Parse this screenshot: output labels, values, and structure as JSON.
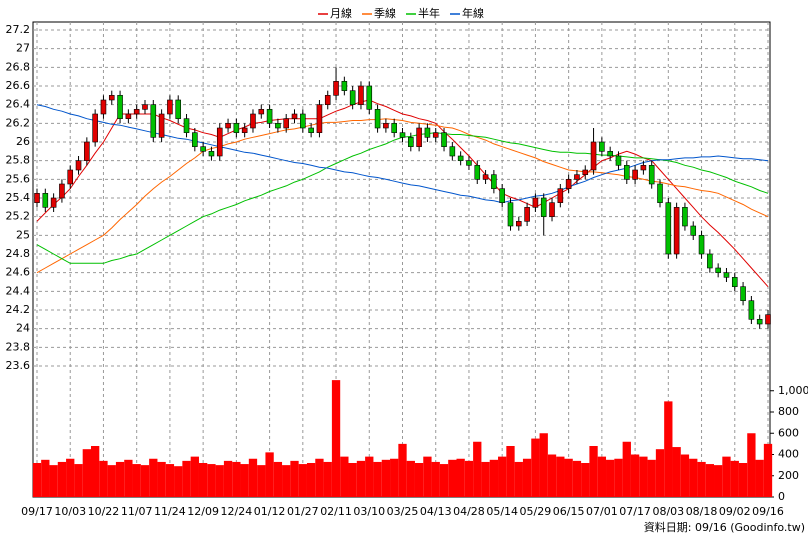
{
  "chart_data": {
    "type": "candlestick",
    "legend": [
      "月線",
      "季線",
      "半年",
      "年線"
    ],
    "footer": "資料日期: 09/16  (Goodinfo.tw)",
    "categories": [
      "09/17",
      null,
      null,
      null,
      "10/03",
      null,
      null,
      null,
      "10/22",
      null,
      null,
      null,
      "11/07",
      null,
      null,
      null,
      "11/24",
      null,
      null,
      null,
      "12/09",
      null,
      null,
      null,
      "12/24",
      null,
      null,
      null,
      "01/12",
      null,
      null,
      null,
      "01/27",
      null,
      null,
      null,
      "02/11",
      null,
      null,
      null,
      "03/10",
      null,
      null,
      null,
      "03/25",
      null,
      null,
      null,
      "04/13",
      null,
      null,
      null,
      "04/28",
      null,
      null,
      null,
      "05/14",
      null,
      null,
      null,
      "05/29",
      null,
      null,
      null,
      "06/15",
      null,
      null,
      null,
      "07/01",
      null,
      null,
      null,
      "07/17",
      null,
      null,
      null,
      "08/03",
      null,
      null,
      null,
      "08/18",
      null,
      null,
      null,
      "09/02",
      null,
      null,
      null,
      "09/16"
    ],
    "open": [
      25.35,
      25.45,
      25.3,
      25.4,
      25.55,
      25.7,
      25.8,
      26.0,
      26.3,
      26.45,
      26.5,
      26.25,
      26.3,
      26.35,
      26.4,
      26.05,
      26.3,
      26.45,
      26.25,
      26.1,
      25.95,
      25.9,
      25.85,
      26.15,
      26.2,
      26.1,
      26.15,
      26.3,
      26.35,
      26.2,
      26.15,
      26.25,
      26.3,
      26.15,
      26.1,
      26.4,
      26.5,
      26.65,
      26.55,
      26.4,
      26.6,
      26.35,
      26.15,
      26.2,
      26.1,
      26.05,
      25.95,
      26.15,
      26.05,
      26.1,
      25.95,
      25.85,
      25.8,
      25.75,
      25.6,
      25.65,
      25.5,
      25.35,
      25.1,
      25.15,
      25.3,
      25.4,
      25.2,
      25.35,
      25.5,
      25.6,
      25.65,
      25.7,
      26.0,
      25.9,
      25.85,
      25.75,
      25.6,
      25.7,
      25.75,
      25.55,
      25.35,
      24.8,
      25.3,
      25.1,
      25.0,
      24.8,
      24.65,
      24.6,
      24.55,
      24.45,
      24.3,
      24.1,
      24.05
    ],
    "high": [
      25.5,
      25.5,
      25.45,
      25.6,
      25.75,
      25.85,
      26.05,
      26.35,
      26.5,
      26.55,
      26.55,
      26.35,
      26.4,
      26.45,
      26.45,
      26.35,
      26.5,
      26.5,
      26.3,
      26.15,
      26.0,
      25.95,
      26.2,
      26.25,
      26.25,
      26.2,
      26.35,
      26.4,
      26.4,
      26.25,
      26.3,
      26.35,
      26.35,
      26.2,
      26.45,
      26.55,
      26.8,
      26.7,
      26.6,
      26.65,
      26.65,
      26.4,
      26.25,
      26.25,
      26.15,
      26.1,
      26.2,
      26.2,
      26.15,
      26.15,
      26.0,
      25.9,
      25.85,
      25.8,
      25.7,
      25.7,
      25.55,
      25.4,
      25.2,
      25.35,
      25.45,
      25.45,
      25.4,
      25.55,
      25.65,
      25.7,
      25.75,
      26.15,
      26.05,
      25.95,
      25.9,
      25.8,
      25.75,
      25.8,
      25.8,
      25.6,
      25.4,
      25.35,
      25.35,
      25.15,
      25.05,
      24.85,
      24.7,
      24.65,
      24.6,
      24.5,
      24.35,
      24.15,
      24.2
    ],
    "low": [
      25.3,
      25.25,
      25.25,
      25.35,
      25.5,
      25.65,
      25.75,
      25.95,
      26.25,
      26.4,
      26.2,
      26.2,
      26.25,
      26.3,
      26.0,
      26.0,
      26.25,
      26.2,
      26.05,
      25.9,
      25.85,
      25.8,
      25.8,
      26.1,
      26.05,
      26.05,
      26.1,
      26.25,
      26.15,
      26.1,
      26.1,
      26.2,
      26.1,
      26.05,
      26.05,
      26.35,
      26.45,
      26.5,
      26.35,
      26.35,
      26.3,
      26.1,
      26.1,
      26.05,
      26.0,
      25.9,
      25.9,
      26.0,
      26.0,
      25.9,
      25.8,
      25.75,
      25.7,
      25.55,
      25.55,
      25.45,
      25.3,
      25.05,
      25.05,
      25.1,
      25.25,
      25.0,
      25.15,
      25.3,
      25.45,
      25.55,
      25.6,
      25.65,
      25.85,
      25.8,
      25.7,
      25.55,
      25.55,
      25.65,
      25.5,
      25.3,
      24.75,
      24.75,
      25.05,
      24.95,
      24.75,
      24.6,
      24.55,
      24.5,
      24.4,
      24.25,
      24.05,
      24.0,
      24.0
    ],
    "close": [
      25.45,
      25.3,
      25.4,
      25.55,
      25.7,
      25.8,
      26.0,
      26.3,
      26.45,
      26.5,
      26.25,
      26.3,
      26.35,
      26.4,
      26.05,
      26.3,
      26.45,
      26.25,
      26.1,
      25.95,
      25.9,
      25.85,
      26.15,
      26.2,
      26.1,
      26.15,
      26.3,
      26.35,
      26.2,
      26.15,
      26.25,
      26.3,
      26.15,
      26.1,
      26.4,
      26.5,
      26.65,
      26.55,
      26.4,
      26.6,
      26.35,
      26.15,
      26.2,
      26.1,
      26.05,
      25.95,
      26.15,
      26.05,
      26.1,
      25.95,
      25.85,
      25.8,
      25.75,
      25.6,
      25.65,
      25.5,
      25.35,
      25.1,
      25.15,
      25.3,
      25.4,
      25.2,
      25.35,
      25.5,
      25.6,
      25.65,
      25.7,
      26.0,
      25.9,
      25.85,
      25.75,
      25.6,
      25.7,
      25.75,
      25.55,
      25.35,
      24.8,
      25.3,
      25.1,
      25.0,
      24.8,
      24.65,
      24.6,
      24.55,
      24.45,
      24.3,
      24.1,
      24.05,
      24.15
    ],
    "up_color": "#e00000",
    "down_color": "#00c000",
    "ylim": [
      23.6,
      27.2
    ],
    "yticks": [
      23.6,
      23.8,
      24,
      24.2,
      24.4,
      24.6,
      24.8,
      25,
      25.2,
      25.4,
      25.6,
      25.8,
      26,
      26.2,
      26.4,
      26.6,
      26.8,
      27,
      27.2
    ],
    "grid": true,
    "lines": [
      {
        "name": "月線",
        "color": "#e00000",
        "values": [
          25.15,
          25.24,
          25.33,
          25.41,
          25.5,
          25.63,
          25.75,
          25.88,
          26.0,
          26.15,
          26.3,
          26.3,
          26.3,
          26.3,
          26.3,
          26.26,
          26.23,
          26.19,
          26.15,
          26.13,
          26.1,
          26.08,
          26.05,
          26.09,
          26.13,
          26.16,
          26.2,
          26.21,
          26.23,
          26.24,
          26.25,
          26.25,
          26.25,
          26.25,
          26.25,
          26.29,
          26.33,
          26.36,
          26.4,
          26.43,
          26.45,
          26.41,
          26.38,
          26.34,
          26.3,
          26.28,
          26.25,
          26.23,
          26.2,
          26.11,
          26.03,
          25.94,
          25.85,
          25.75,
          25.65,
          25.55,
          25.45,
          25.41,
          25.38,
          25.34,
          25.3,
          25.35,
          25.4,
          25.45,
          25.5,
          25.58,
          25.65,
          25.73,
          25.8,
          25.83,
          25.87,
          25.9,
          25.87,
          25.83,
          25.8,
          25.7,
          25.6,
          25.5,
          25.4,
          25.3,
          25.2,
          25.11,
          25.03,
          24.94,
          24.85,
          24.75,
          24.65,
          24.55,
          24.45
        ]
      },
      {
        "name": "季線",
        "color": "#ff6600",
        "values": [
          24.6,
          24.65,
          24.7,
          24.75,
          24.8,
          24.85,
          24.9,
          24.95,
          25.0,
          25.08,
          25.17,
          25.25,
          25.33,
          25.42,
          25.5,
          25.57,
          25.63,
          25.7,
          25.77,
          25.83,
          25.9,
          25.93,
          25.95,
          25.98,
          26.0,
          26.03,
          26.05,
          26.07,
          26.09,
          26.11,
          26.13,
          26.14,
          26.16,
          26.18,
          26.2,
          26.21,
          26.21,
          26.22,
          26.23,
          26.23,
          26.24,
          26.24,
          26.25,
          26.24,
          26.23,
          26.21,
          26.2,
          26.19,
          26.18,
          26.16,
          26.15,
          26.12,
          26.08,
          26.05,
          26.02,
          25.98,
          25.95,
          25.92,
          25.89,
          25.86,
          25.83,
          25.79,
          25.76,
          25.73,
          25.7,
          25.69,
          25.68,
          25.68,
          25.67,
          25.66,
          25.65,
          25.63,
          25.62,
          25.6,
          25.58,
          25.57,
          25.55,
          25.53,
          25.52,
          25.5,
          25.48,
          25.47,
          25.45,
          25.41,
          25.37,
          25.33,
          25.28,
          25.24,
          25.2
        ]
      },
      {
        "name": "半年",
        "color": "#00c000",
        "values": [
          24.9,
          24.85,
          24.8,
          24.75,
          24.7,
          24.7,
          24.7,
          24.7,
          24.7,
          24.73,
          24.75,
          24.78,
          24.8,
          24.85,
          24.9,
          24.95,
          25.0,
          25.05,
          25.1,
          25.15,
          25.2,
          25.23,
          25.27,
          25.3,
          25.33,
          25.37,
          25.4,
          25.43,
          25.47,
          25.5,
          25.53,
          25.57,
          25.6,
          25.64,
          25.68,
          25.73,
          25.77,
          25.81,
          25.85,
          25.88,
          25.92,
          25.95,
          25.98,
          26.02,
          26.05,
          26.06,
          26.08,
          26.09,
          26.1,
          26.09,
          26.08,
          26.08,
          26.07,
          26.06,
          26.05,
          26.03,
          26.01,
          25.99,
          25.98,
          25.96,
          25.94,
          25.92,
          25.9,
          25.89,
          25.89,
          25.88,
          25.88,
          25.87,
          25.86,
          25.86,
          25.85,
          25.84,
          25.83,
          25.83,
          25.82,
          25.81,
          25.8,
          25.78,
          25.75,
          25.73,
          25.7,
          25.68,
          25.65,
          25.62,
          25.58,
          25.55,
          25.52,
          25.48,
          25.45
        ]
      },
      {
        "name": "年線",
        "color": "#0055cc",
        "values": [
          26.4,
          26.38,
          26.35,
          26.33,
          26.3,
          26.28,
          26.25,
          26.23,
          26.21,
          26.19,
          26.18,
          26.16,
          26.14,
          26.12,
          26.1,
          26.08,
          26.06,
          26.04,
          26.03,
          26.01,
          25.99,
          25.97,
          25.95,
          25.93,
          25.91,
          25.89,
          25.88,
          25.86,
          25.84,
          25.82,
          25.8,
          25.78,
          25.77,
          25.75,
          25.73,
          25.72,
          25.7,
          25.68,
          25.67,
          25.65,
          25.63,
          25.62,
          25.6,
          25.58,
          25.56,
          25.54,
          25.53,
          25.51,
          25.49,
          25.47,
          25.45,
          25.43,
          25.42,
          25.4,
          25.38,
          25.37,
          25.35,
          25.37,
          25.38,
          25.4,
          25.42,
          25.43,
          25.45,
          25.48,
          25.52,
          25.55,
          25.58,
          25.62,
          25.65,
          25.68,
          25.7,
          25.72,
          25.75,
          25.78,
          25.8,
          25.81,
          25.81,
          25.82,
          25.83,
          25.83,
          25.84,
          25.84,
          25.85,
          25.84,
          25.83,
          25.82,
          25.82,
          25.81,
          25.8
        ]
      }
    ],
    "volume": {
      "color": "#ff0000",
      "values": [
        320,
        350,
        300,
        330,
        360,
        310,
        450,
        480,
        340,
        300,
        330,
        350,
        310,
        300,
        360,
        330,
        310,
        290,
        340,
        380,
        320,
        310,
        300,
        340,
        330,
        310,
        360,
        300,
        420,
        330,
        300,
        340,
        310,
        320,
        360,
        330,
        1100,
        380,
        320,
        340,
        380,
        330,
        350,
        360,
        500,
        340,
        320,
        380,
        330,
        310,
        350,
        360,
        340,
        520,
        330,
        350,
        380,
        480,
        330,
        360,
        550,
        600,
        400,
        380,
        360,
        340,
        320,
        480,
        380,
        350,
        360,
        520,
        400,
        380,
        350,
        450,
        900,
        470,
        400,
        360,
        330,
        310,
        300,
        380,
        340,
        320,
        600,
        350,
        500
      ],
      "ylim": [
        0,
        1120
      ],
      "yticks": [
        0,
        200,
        400,
        600,
        800,
        {
          "value": 1000,
          "label": "1,000"
        }
      ]
    }
  }
}
